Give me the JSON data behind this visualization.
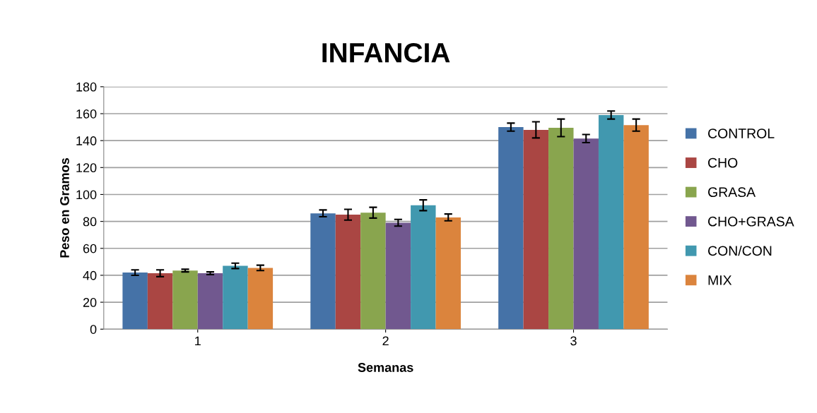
{
  "chart_data": {
    "type": "bar",
    "title": "INFANCIA",
    "xlabel": "Semanas",
    "ylabel": "Peso en Gramos",
    "categories": [
      "1",
      "2",
      "3"
    ],
    "series": [
      {
        "name": "CONTROL",
        "color": "#4572a7",
        "values": [
          42,
          86,
          150
        ],
        "errors": [
          2,
          2.5,
          3
        ]
      },
      {
        "name": "CHO",
        "color": "#aa4643",
        "values": [
          41.5,
          85,
          148
        ],
        "errors": [
          2.5,
          4,
          6
        ]
      },
      {
        "name": "GRASA",
        "color": "#89a54e",
        "values": [
          43.5,
          86.5,
          149.5
        ],
        "errors": [
          1,
          4,
          6.5
        ]
      },
      {
        "name": "CHO+GRASA",
        "color": "#71588f",
        "values": [
          41.5,
          79,
          141.5
        ],
        "errors": [
          1,
          2.5,
          3
        ]
      },
      {
        "name": "CON/CON",
        "color": "#4198af",
        "values": [
          47,
          92,
          159
        ],
        "errors": [
          2,
          4,
          3
        ]
      },
      {
        "name": "MIX",
        "color": "#db843d",
        "values": [
          45.5,
          83,
          151.5
        ],
        "errors": [
          2,
          2.5,
          4.5
        ]
      }
    ],
    "ylim": [
      0,
      180
    ],
    "yticks": [
      0,
      20,
      40,
      60,
      80,
      100,
      120,
      140,
      160,
      180
    ],
    "grid": "y",
    "legend": "right"
  }
}
